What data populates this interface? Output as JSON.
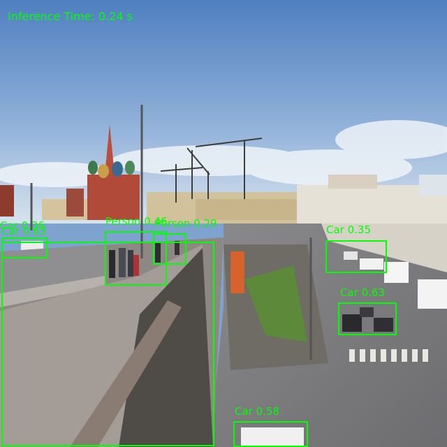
{
  "overlay": {
    "inference_prefix": "Inference Time:",
    "inference_value": "0.24 s",
    "box_color": "#00ff00"
  },
  "detections": [
    {
      "label": "Car",
      "score": "0.36"
    },
    {
      "label": "Car",
      "score": "0.63"
    },
    {
      "label": "Person",
      "score": "0.46"
    },
    {
      "label": "Person",
      "score": "0.29"
    },
    {
      "label": "Car",
      "score": "0.35"
    },
    {
      "label": "Car",
      "score": "0.63"
    },
    {
      "label": "Car",
      "score": "0.58"
    }
  ],
  "scene": {
    "sky_top": "#5b87c4",
    "sky_bottom": "#c9dced",
    "road": "#7c7c7e",
    "bridge": "#9b9591",
    "grass": "#5c8a3a"
  }
}
